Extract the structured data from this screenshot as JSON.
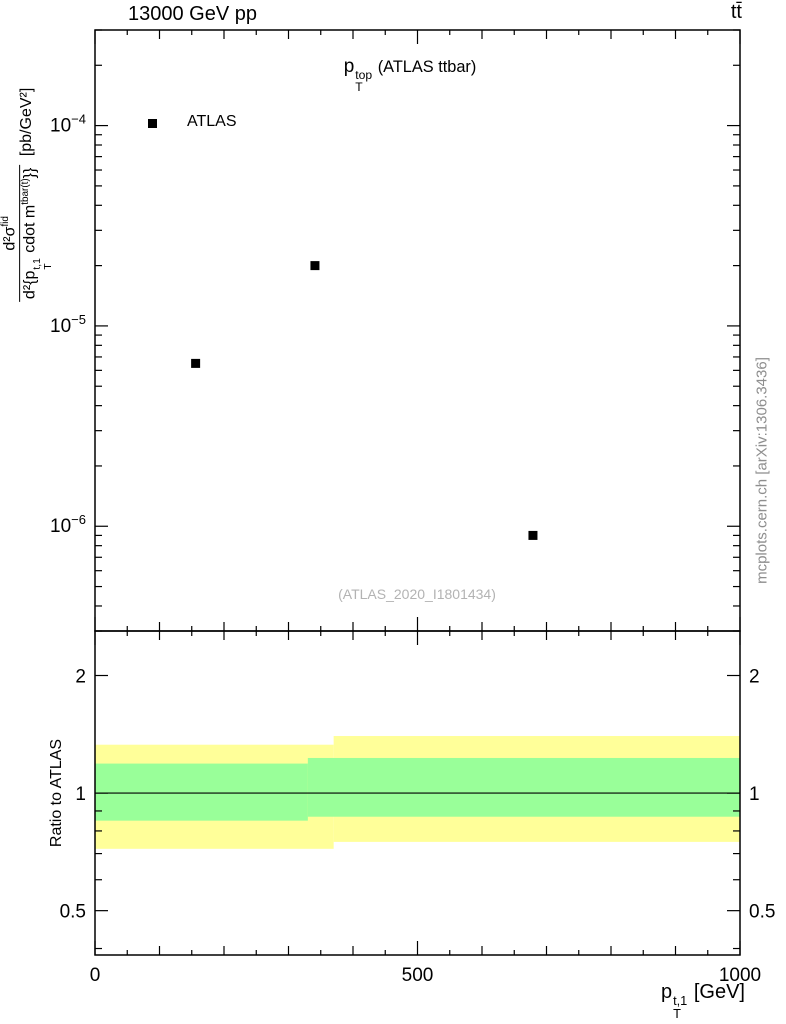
{
  "header": {
    "left": "13000 GeV pp",
    "right": "tt̄"
  },
  "title": {
    "base": "p",
    "sup": "top",
    "sub": "T",
    "rest": " (ATLAS ttbar)"
  },
  "legend": {
    "label": "ATLAS"
  },
  "watermark": "(ATLAS_2020_I1801434)",
  "side_note": "mcplots.cern.ch [arXiv:1306.3436]",
  "y_axis_label": {
    "num_base": "d²σ",
    "num_sup": "fid",
    "den_p": "d²{p",
    "den_p_sup": "t,1",
    "den_p_sub": "T",
    "den_mid": " cdot m",
    "den_m_sup": "tbar(t)",
    "den_close": "}}",
    "units": " [pb/GeV²]"
  },
  "ratio_axis_label": "Ratio to ATLAS",
  "x_axis_label": {
    "base": "p",
    "sup": "t,1",
    "sub": "T",
    "rest": " [GeV]"
  },
  "chart_data": [
    {
      "type": "scatter",
      "name": "main-panel",
      "title": "pT^top (ATLAS ttbar)",
      "xlim": [
        0,
        1000
      ],
      "ylim": [
        3e-07,
        0.0003
      ],
      "xscale": "linear",
      "yscale": "log",
      "ytick_exponents": [
        -4,
        -5,
        -6
      ],
      "xticks": [
        0,
        500,
        1000
      ],
      "ylabel": "d2sigma^fid / d2{pT^t,1 cdot m^tbar(t)} [pb/GeV^2]",
      "series": [
        {
          "name": "ATLAS",
          "marker": "black-filled-square",
          "color": "#000000",
          "points": [
            {
              "x": 156,
              "y": 6.5e-06
            },
            {
              "x": 341,
              "y": 2e-05
            },
            {
              "x": 679,
              "y": 9e-07
            }
          ]
        }
      ]
    },
    {
      "type": "band",
      "name": "ratio-panel",
      "ylabel": "Ratio to ATLAS",
      "xlabel": "pT^t,1 [GeV]",
      "xlim": [
        0,
        1000
      ],
      "ylim": [
        0.385,
        2.6
      ],
      "yscale": "log",
      "yticks": [
        2,
        1,
        0.5
      ],
      "xticks": [
        0,
        500,
        1000
      ],
      "reference_line": 1,
      "bands": [
        {
          "name": "outer-uncertainty",
          "color": "#ffff99",
          "segments": [
            {
              "x0": 0,
              "x1": 370,
              "lo": 0.72,
              "hi": 1.33
            },
            {
              "x0": 370,
              "x1": 1000,
              "lo": 0.75,
              "hi": 1.4
            }
          ]
        },
        {
          "name": "inner-uncertainty",
          "color": "#99ff99",
          "segments": [
            {
              "x0": 0,
              "x1": 330,
              "lo": 0.85,
              "hi": 1.19
            },
            {
              "x0": 330,
              "x1": 1000,
              "lo": 0.87,
              "hi": 1.23
            }
          ]
        }
      ]
    }
  ]
}
